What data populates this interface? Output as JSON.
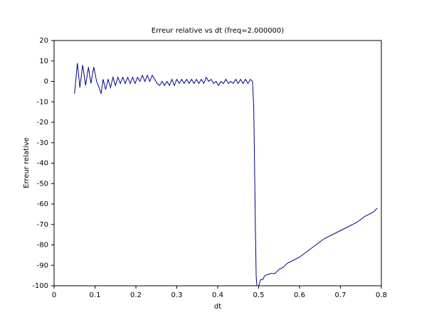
{
  "chart_data": {
    "type": "line",
    "title": "Erreur relative vs dt (freq=2.000000)",
    "xlabel": "dt",
    "ylabel": "Erreur relative",
    "xlim": [
      0,
      0.8
    ],
    "ylim": [
      -100,
      20
    ],
    "xticks": [
      0,
      0.1,
      0.2,
      0.3,
      0.4,
      0.5,
      0.6,
      0.7,
      0.8
    ],
    "yticks": [
      20,
      10,
      0,
      -10,
      -20,
      -30,
      -40,
      -50,
      -60,
      -70,
      -80,
      -90,
      -100
    ],
    "grid": false,
    "series": [
      {
        "name": "Erreur relative",
        "color": "#00008b",
        "x": [
          0.05,
          0.057,
          0.063,
          0.07,
          0.077,
          0.084,
          0.09,
          0.097,
          0.104,
          0.11,
          0.115,
          0.12,
          0.126,
          0.132,
          0.138,
          0.144,
          0.15,
          0.156,
          0.162,
          0.168,
          0.174,
          0.18,
          0.186,
          0.192,
          0.198,
          0.204,
          0.21,
          0.216,
          0.222,
          0.228,
          0.234,
          0.24,
          0.246,
          0.252,
          0.258,
          0.264,
          0.27,
          0.276,
          0.282,
          0.288,
          0.294,
          0.3,
          0.306,
          0.312,
          0.318,
          0.324,
          0.33,
          0.336,
          0.342,
          0.348,
          0.354,
          0.36,
          0.366,
          0.372,
          0.378,
          0.384,
          0.39,
          0.396,
          0.402,
          0.408,
          0.414,
          0.42,
          0.426,
          0.432,
          0.438,
          0.444,
          0.45,
          0.456,
          0.462,
          0.468,
          0.474,
          0.48,
          0.485,
          0.488,
          0.49,
          0.492,
          0.494,
          0.496,
          0.5,
          0.505,
          0.51,
          0.515,
          0.53,
          0.54,
          0.55,
          0.56,
          0.57,
          0.58,
          0.6,
          0.62,
          0.64,
          0.66,
          0.68,
          0.7,
          0.72,
          0.74,
          0.76,
          0.78,
          0.79
        ],
        "values": [
          -6,
          9,
          -3,
          8,
          -2,
          7,
          -1,
          7,
          0,
          -3,
          -6,
          1,
          -4,
          1,
          -3,
          2,
          -2,
          2,
          -1,
          2,
          -1,
          2,
          -1,
          2,
          -1,
          2,
          0,
          3,
          0,
          3,
          0,
          3,
          1,
          -1,
          -2,
          0,
          -2,
          0,
          -2,
          1,
          -2,
          1,
          -1,
          1,
          -1,
          1,
          -1,
          1,
          -1,
          1,
          -1,
          1,
          -1,
          2,
          0,
          1,
          -1,
          0,
          -2,
          0,
          -1,
          1,
          -1,
          0,
          -1,
          1,
          -1,
          1,
          -1,
          1,
          -1,
          1,
          0,
          -12,
          -40,
          -70,
          -95,
          -102,
          -100,
          -97,
          -97,
          -95,
          -94,
          -94,
          -92,
          -91,
          -89,
          -88,
          -86,
          -83,
          -80,
          -77,
          -75,
          -73,
          -71,
          -69,
          -66,
          -64,
          -62
        ]
      }
    ]
  }
}
